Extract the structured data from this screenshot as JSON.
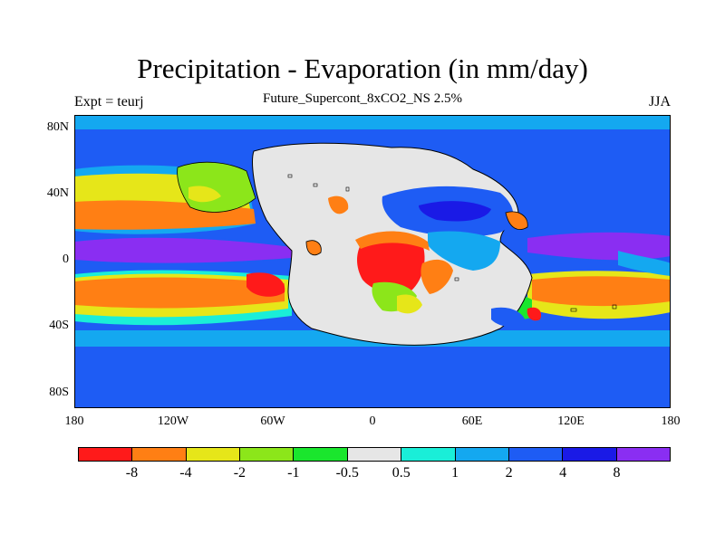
{
  "title": "Precipitation - Evaporation (in mm/day)",
  "subtitle": "Future_Supercont_8xCO2_NS 2.5%",
  "left_label": "Expt = teurj",
  "right_label": "JJA",
  "map": {
    "projection": "cylindrical-equidistant",
    "lon_range": [
      -180,
      180
    ],
    "lat_range": [
      -90,
      90
    ],
    "continent_outline": "black",
    "ocean_base_color": "#1e5cf4",
    "land_base_color": "#e6e6e6"
  },
  "y_ticks": [
    "80N",
    "40N",
    "0",
    "40S",
    "80S"
  ],
  "x_ticks": [
    "180",
    "120W",
    "60W",
    "0",
    "60E",
    "120E",
    "180"
  ],
  "colorbar": {
    "colors": [
      "#ff1a1a",
      "#ff7f14",
      "#e6e619",
      "#8ce61a",
      "#1ae62d",
      "#e6e6e6",
      "#1aeed8",
      "#14a8f0",
      "#1e5cf4",
      "#1a1ae6",
      "#8a2ef2"
    ],
    "labels": [
      "-8",
      "-4",
      "-2",
      "-1",
      "-0.5",
      "0.5",
      "1",
      "2",
      "4",
      "8"
    ]
  }
}
